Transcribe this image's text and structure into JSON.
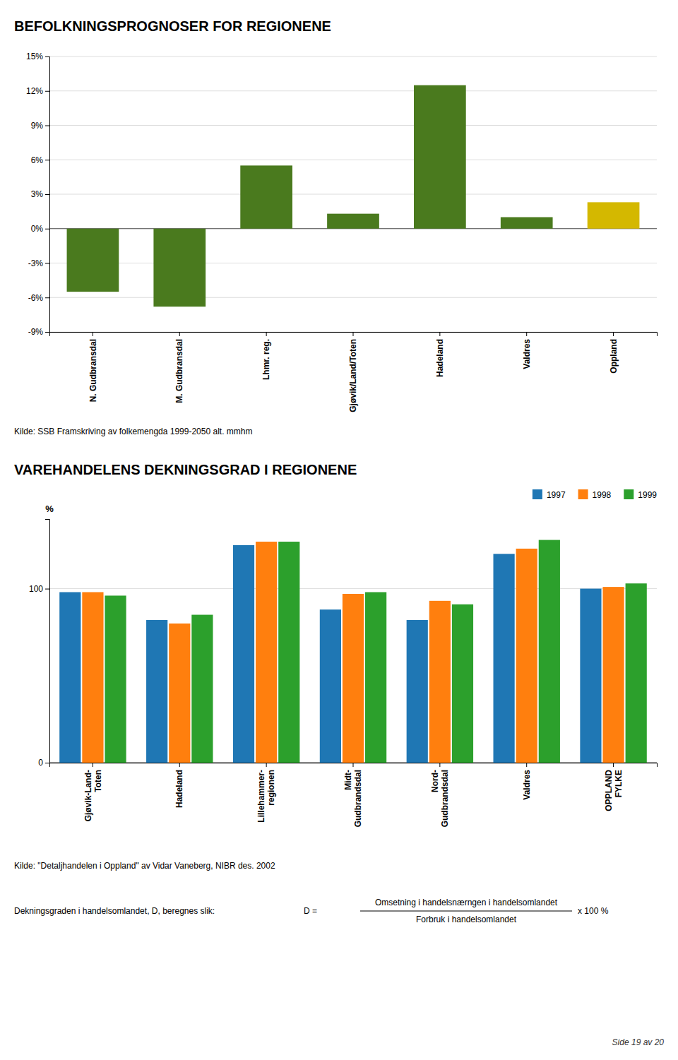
{
  "chart_data": [
    {
      "type": "bar",
      "title": "BEFOLKNINGSPROGNOSER FOR REGIONENE",
      "categories": [
        "N. Gudbransdal",
        "M. Gudbransdal",
        "Lhmr. reg.",
        "Gjøvik/Land/Toten",
        "Hadeland",
        "Valdres",
        "Oppland"
      ],
      "values": [
        -5.5,
        -6.8,
        5.5,
        1.3,
        12.5,
        1.0,
        2.3
      ],
      "colors": [
        "#4a7a1e",
        "#4a7a1e",
        "#4a7a1e",
        "#4a7a1e",
        "#4a7a1e",
        "#4a7a1e",
        "#d4b800"
      ],
      "ylim": [
        -9,
        15
      ],
      "yticks": [
        {
          "value": -9,
          "label": "-9%"
        },
        {
          "value": -6,
          "label": "-6%"
        },
        {
          "value": -3,
          "label": "-3%"
        },
        {
          "value": 0,
          "label": "0%"
        },
        {
          "value": 3,
          "label": "3%"
        },
        {
          "value": 6,
          "label": "6%"
        },
        {
          "value": 9,
          "label": "9%"
        },
        {
          "value": 12,
          "label": "12%"
        },
        {
          "value": 15,
          "label": "15%"
        }
      ],
      "grid": true,
      "annotations": [
        "Kilde:  SSB  Framskriving av folkemengda 1999-2050 alt.  mmhm"
      ]
    },
    {
      "type": "bar",
      "title": "VAREHANDELENS DEKNINGSGRAD I REGIONENE",
      "categories": [
        "Gjøvik-Land-\nToten",
        "Hadeland",
        "Lillehammer-\nregionen",
        "Midt-\nGudbrandsdal",
        "Nord-\nGudbrandsdal",
        "Valdres",
        "OPPLAND\nFYLKE"
      ],
      "series": [
        {
          "name": "1997",
          "values": [
            98,
            82,
            125,
            88,
            82,
            120,
            100
          ]
        },
        {
          "name": "1998",
          "values": [
            98,
            80,
            127,
            97,
            93,
            123,
            101
          ]
        },
        {
          "name": "1999",
          "values": [
            96,
            85,
            127,
            98,
            91,
            128,
            103
          ]
        }
      ],
      "y_label": "%",
      "ylim": [
        0,
        140
      ],
      "yticks": [
        0,
        100
      ],
      "grid": true,
      "legend": "top-right",
      "annotations": [
        "Kilde:  \"Detaljhandelen i Oppland\" av Vidar Vaneberg, NIBR des. 2002",
        "Dekningsgraden i handelsomlandet, D, beregnes slik:",
        "D  =",
        "Omsetning i handelsnærngen i handelsomlandet",
        "Forbruk i handelsomlandet",
        "x 100 %",
        "Side 19 av 20"
      ]
    }
  ]
}
